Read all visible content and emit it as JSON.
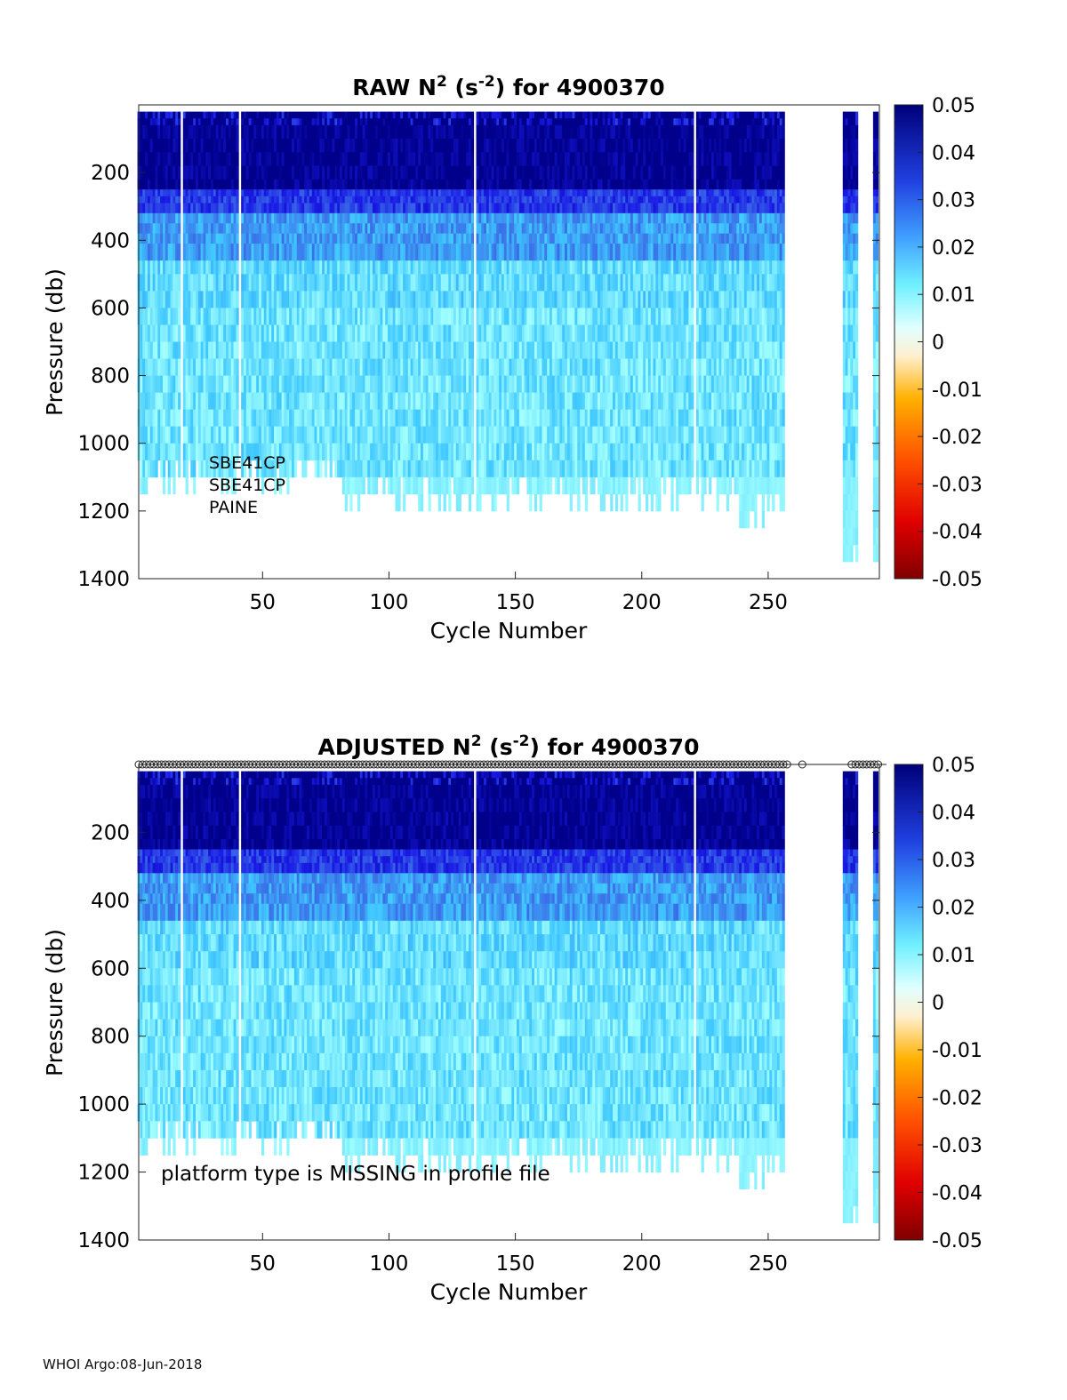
{
  "footer": "WHOI Argo:08-Jun-2018",
  "colormap": [
    "#800000",
    "#ff0000",
    "#ff8000",
    "#ffd000",
    "#fff8e8",
    "#a0ffff",
    "#40c8ff",
    "#3a6ee8",
    "#1a1ae6",
    "#00008a"
  ],
  "chart_data": [
    {
      "type": "heatmap",
      "title_prefix": "RAW N",
      "title_sup1": "2",
      "title_mid": " (s",
      "title_sup2": "-2",
      "title_suffix": ") for 4900370",
      "xlabel": "Cycle Number",
      "ylabel": "Pressure (db)",
      "xlim": [
        1,
        294
      ],
      "ylim": [
        1400,
        0
      ],
      "xticks": [
        "50",
        "100",
        "150",
        "200",
        "250"
      ],
      "yticks": [
        "200",
        "400",
        "600",
        "800",
        "1000",
        "1200",
        "1400"
      ],
      "clim": [
        -0.05,
        0.05
      ],
      "colorbar_ticks": [
        "0.05",
        "0.04",
        "0.03",
        "0.02",
        "0.01",
        "0",
        "-0.01",
        "-0.02",
        "-0.03",
        "-0.04",
        "-0.05"
      ],
      "annotations": [
        "SBE41CP",
        "SBE41CP",
        "PAINE"
      ],
      "qc_markers": false,
      "depth_profile": [
        {
          "p": [
            20,
            60
          ],
          "v": 0.045
        },
        {
          "p": [
            60,
            250
          ],
          "v": 0.05
        },
        {
          "p": [
            250,
            320
          ],
          "v": 0.035
        },
        {
          "p": [
            320,
            460
          ],
          "v": 0.022
        },
        {
          "p": [
            460,
            600
          ],
          "v": 0.013
        },
        {
          "p": [
            600,
            1100
          ],
          "v": 0.011
        }
      ],
      "gaps": [
        18,
        41,
        134,
        221,
        258,
        264,
        265,
        266,
        267,
        268,
        269,
        270,
        271,
        272,
        273,
        274,
        275,
        276,
        277,
        278,
        279,
        286,
        287,
        288,
        289,
        290,
        291
      ],
      "max_depth_breaks": [
        {
          "x": [
            1,
            83
          ],
          "max": 1100
        },
        {
          "x": [
            83,
            165
          ],
          "max": 1150
        },
        {
          "x": [
            165,
            238
          ],
          "max": 1150
        },
        {
          "x": [
            238,
            257
          ],
          "max": 1200
        },
        {
          "x": [
            280,
            294
          ],
          "max": 1350
        }
      ]
    },
    {
      "type": "heatmap",
      "title_prefix": "ADJUSTED N",
      "title_sup1": "2",
      "title_mid": " (s",
      "title_sup2": "-2",
      "title_suffix": ") for 4900370",
      "xlabel": "Cycle Number",
      "ylabel": "Pressure (db)",
      "xlim": [
        1,
        294
      ],
      "ylim": [
        1400,
        0
      ],
      "xticks": [
        "50",
        "100",
        "150",
        "200",
        "250"
      ],
      "yticks": [
        "200",
        "400",
        "600",
        "800",
        "1000",
        "1200",
        "1400"
      ],
      "clim": [
        -0.05,
        0.05
      ],
      "colorbar_ticks": [
        "0.05",
        "0.04",
        "0.03",
        "0.02",
        "0.01",
        "0",
        "-0.01",
        "-0.02",
        "-0.03",
        "-0.04",
        "-0.05"
      ],
      "annotations": [
        "platform type is MISSING in profile file"
      ],
      "qc_markers": true,
      "depth_profile": [
        {
          "p": [
            20,
            60
          ],
          "v": 0.045
        },
        {
          "p": [
            60,
            250
          ],
          "v": 0.05
        },
        {
          "p": [
            250,
            320
          ],
          "v": 0.035
        },
        {
          "p": [
            320,
            460
          ],
          "v": 0.022
        },
        {
          "p": [
            460,
            600
          ],
          "v": 0.013
        },
        {
          "p": [
            600,
            1100
          ],
          "v": 0.011
        }
      ],
      "gaps": [
        18,
        41,
        134,
        221,
        258,
        264,
        265,
        266,
        267,
        268,
        269,
        270,
        271,
        272,
        273,
        274,
        275,
        276,
        277,
        278,
        279,
        286,
        287,
        288,
        289,
        290,
        291
      ],
      "max_depth_breaks": [
        {
          "x": [
            1,
            83
          ],
          "max": 1100
        },
        {
          "x": [
            83,
            165
          ],
          "max": 1150
        },
        {
          "x": [
            165,
            238
          ],
          "max": 1150
        },
        {
          "x": [
            238,
            257
          ],
          "max": 1200
        },
        {
          "x": [
            280,
            294
          ],
          "max": 1350
        }
      ]
    }
  ]
}
